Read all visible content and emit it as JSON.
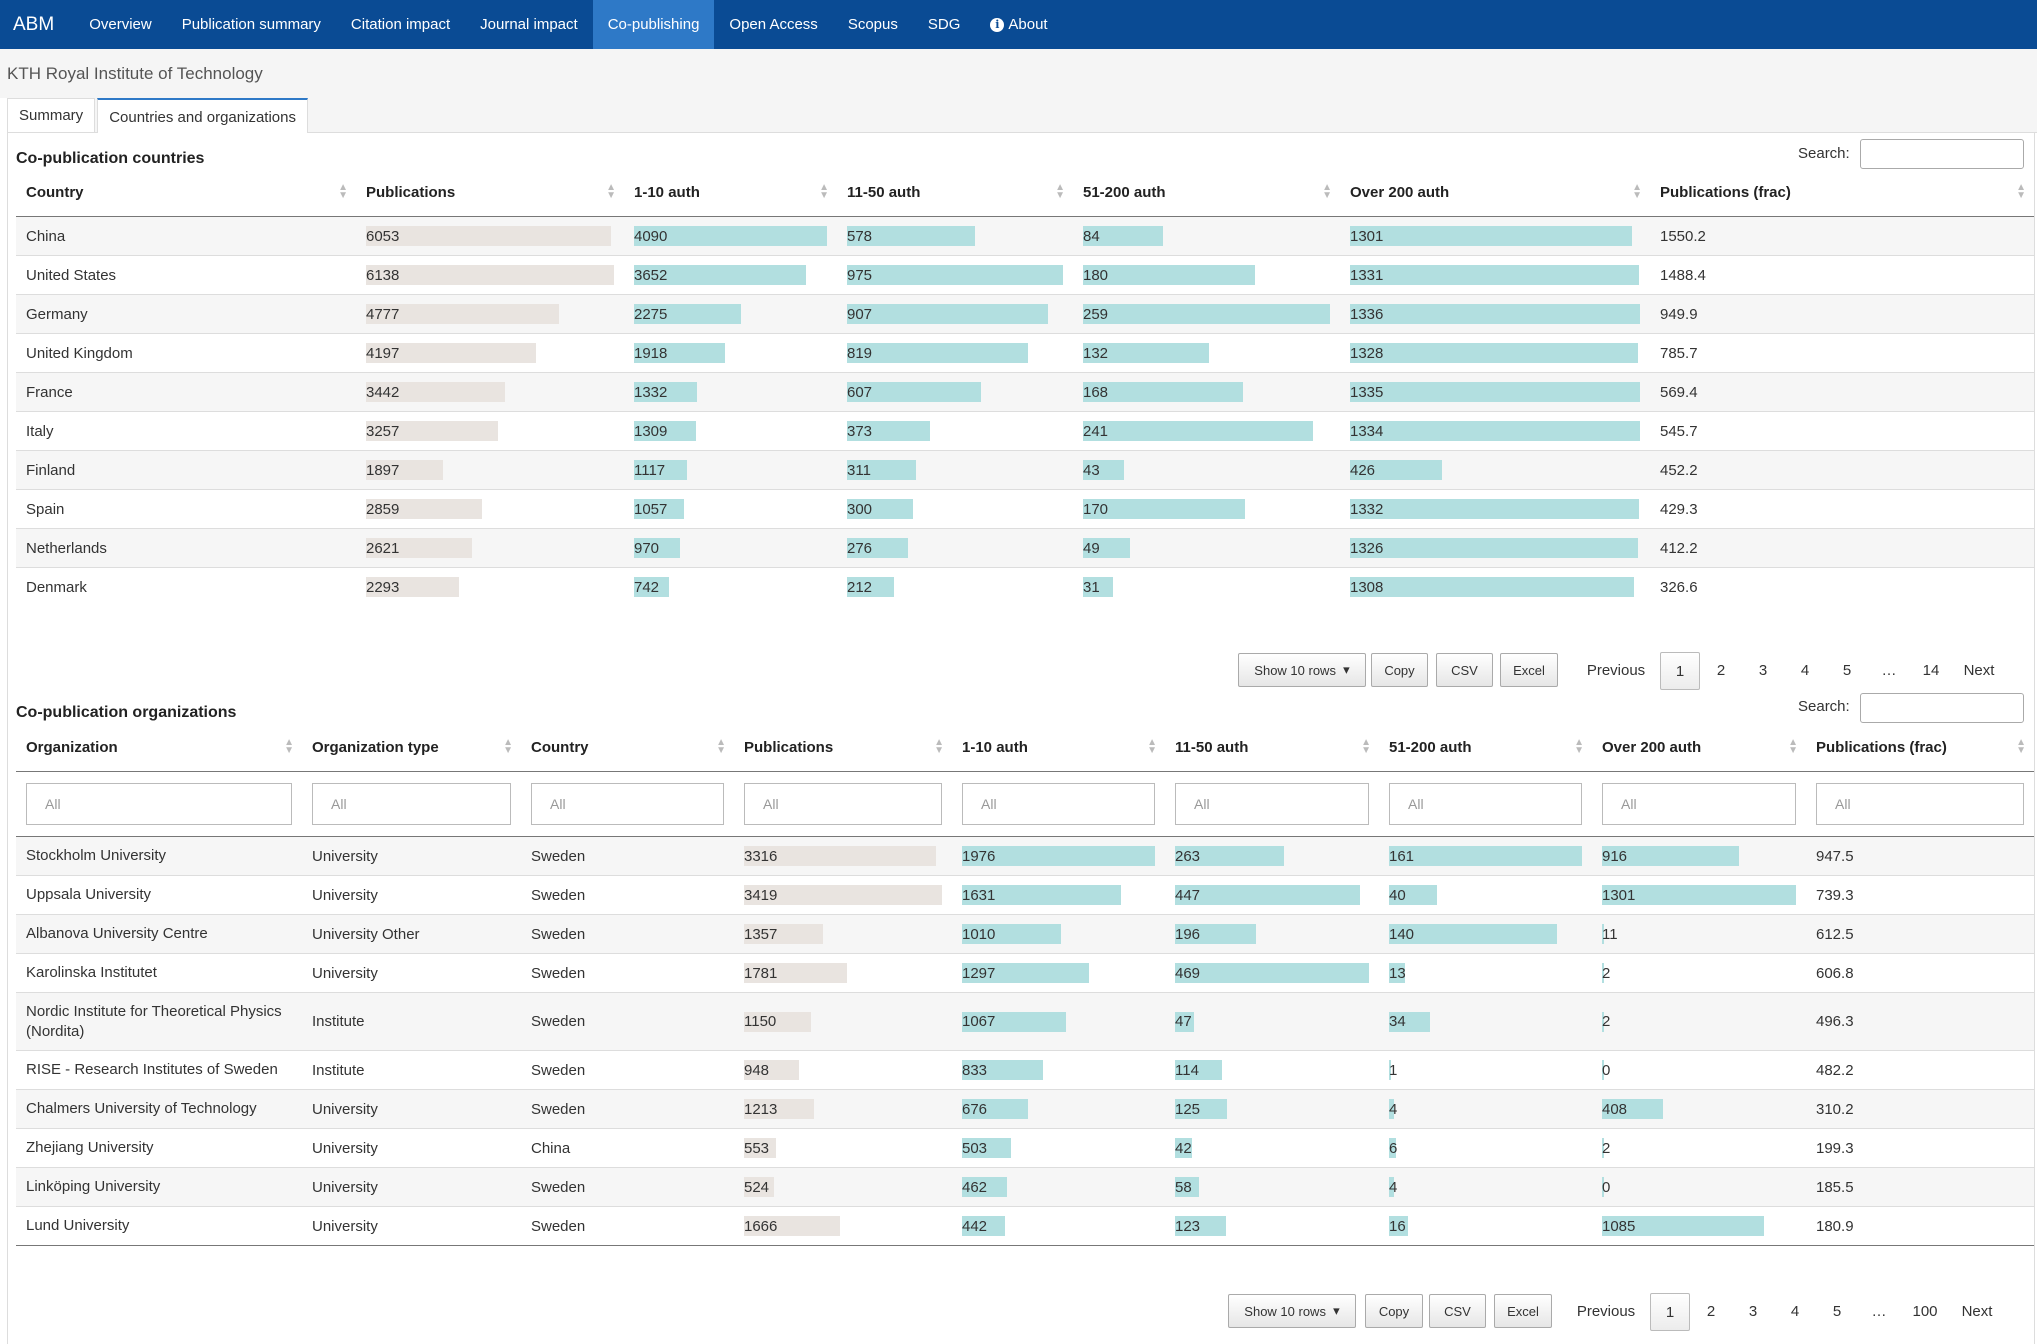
{
  "nav": {
    "brand": "ABM",
    "items": [
      {
        "label": "Overview"
      },
      {
        "label": "Publication summary"
      },
      {
        "label": "Citation impact"
      },
      {
        "label": "Journal impact"
      },
      {
        "label": "Co-publishing"
      },
      {
        "label": "Open Access"
      },
      {
        "label": "Scopus"
      },
      {
        "label": "SDG"
      },
      {
        "label": "About"
      }
    ],
    "active_index": 4
  },
  "subheader": "KTH Royal Institute of Technology",
  "tabs": [
    {
      "label": "Summary"
    },
    {
      "label": "Countries and organizations"
    }
  ],
  "countries": {
    "title": "Co-publication countries",
    "search_label": "Search:",
    "columns": [
      "Country",
      "Publications",
      "1-10 auth",
      "11-50 auth",
      "51-200 auth",
      "Over 200 auth",
      "Publications (frac)"
    ],
    "rows": [
      [
        "China",
        "6053",
        "4090",
        "578",
        "84",
        "1301",
        "1550.2"
      ],
      [
        "United States",
        "6138",
        "3652",
        "975",
        "180",
        "1331",
        "1488.4"
      ],
      [
        "Germany",
        "4777",
        "2275",
        "907",
        "259",
        "1336",
        "949.9"
      ],
      [
        "United Kingdom",
        "4197",
        "1918",
        "819",
        "132",
        "1328",
        "785.7"
      ],
      [
        "France",
        "3442",
        "1332",
        "607",
        "168",
        "1335",
        "569.4"
      ],
      [
        "Italy",
        "3257",
        "1309",
        "373",
        "241",
        "1334",
        "545.7"
      ],
      [
        "Finland",
        "1897",
        "1117",
        "311",
        "43",
        "426",
        "452.2"
      ],
      [
        "Spain",
        "2859",
        "1057",
        "300",
        "170",
        "1332",
        "429.3"
      ],
      [
        "Netherlands",
        "2621",
        "970",
        "276",
        "49",
        "1326",
        "412.2"
      ],
      [
        "Denmark",
        "2293",
        "742",
        "212",
        "31",
        "1308",
        "326.6"
      ]
    ],
    "show_rows": "Show 10 rows",
    "copy": "Copy",
    "csv": "CSV",
    "excel": "Excel",
    "previous": "Previous",
    "next": "Next",
    "pages": [
      "1",
      "2",
      "3",
      "4",
      "5",
      "…",
      "14"
    ]
  },
  "orgs": {
    "title": "Co-publication organizations",
    "search_label": "Search:",
    "columns": [
      "Organization",
      "Organization type",
      "Country",
      "Publications",
      "1-10 auth",
      "11-50 auth",
      "51-200 auth",
      "Over 200 auth",
      "Publications (frac)"
    ],
    "filter_placeholder": "All",
    "rows": [
      [
        "Stockholm University",
        "University",
        "Sweden",
        "3316",
        "1976",
        "263",
        "161",
        "916",
        "947.5"
      ],
      [
        "Uppsala University",
        "University",
        "Sweden",
        "3419",
        "1631",
        "447",
        "40",
        "1301",
        "739.3"
      ],
      [
        "Albanova University Centre",
        "University Other",
        "Sweden",
        "1357",
        "1010",
        "196",
        "140",
        "11",
        "612.5"
      ],
      [
        "Karolinska Institutet",
        "University",
        "Sweden",
        "1781",
        "1297",
        "469",
        "13",
        "2",
        "606.8"
      ],
      [
        "Nordic Institute for Theoretical Physics (Nordita)",
        "Institute",
        "Sweden",
        "1150",
        "1067",
        "47",
        "34",
        "2",
        "496.3"
      ],
      [
        "RISE - Research Institutes of Sweden",
        "Institute",
        "Sweden",
        "948",
        "833",
        "114",
        "1",
        "0",
        "482.2"
      ],
      [
        "Chalmers University of Technology",
        "University",
        "Sweden",
        "1213",
        "676",
        "125",
        "4",
        "408",
        "310.2"
      ],
      [
        "Zhejiang University",
        "University",
        "China",
        "553",
        "503",
        "42",
        "6",
        "2",
        "199.3"
      ],
      [
        "Linköping University",
        "University",
        "Sweden",
        "524",
        "462",
        "58",
        "4",
        "0",
        "185.5"
      ],
      [
        "Lund University",
        "University",
        "Sweden",
        "1666",
        "442",
        "123",
        "16",
        "1085",
        "180.9"
      ]
    ],
    "show_rows": "Show 10 rows",
    "copy": "Copy",
    "csv": "CSV",
    "excel": "Excel",
    "previous": "Previous",
    "next": "Next",
    "pages": [
      "1",
      "2",
      "3",
      "4",
      "5",
      "…",
      "100"
    ]
  },
  "colors": {
    "nav_bg": "#0a4b94",
    "nav_active": "#2e79c7",
    "bar_grey": "#e9e4e0",
    "bar_teal": "#b2dfe0"
  }
}
